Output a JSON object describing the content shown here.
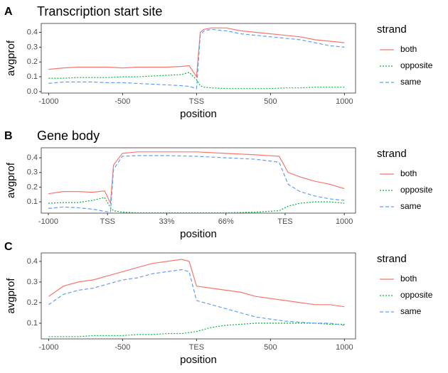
{
  "chart_data": [
    {
      "type": "line",
      "panel": "A",
      "title": "Transcription start site",
      "xlabel": "position",
      "ylabel": "avgprof",
      "legend_title": "strand",
      "legend": "right",
      "xlim": [
        -1050,
        1075
      ],
      "ylim": [
        -0.01,
        0.46
      ],
      "xticks": [
        -1000,
        -500,
        {
          "value": 0,
          "label": "TSS"
        },
        500,
        1000
      ],
      "yticks": [
        {
          "value": 0,
          "label": "0.0"
        },
        0.1,
        0.2,
        0.3,
        0.4
      ],
      "x": [
        -1000,
        -900,
        -800,
        -700,
        -600,
        -500,
        -400,
        -300,
        -200,
        -100,
        -50,
        0,
        25,
        50,
        100,
        200,
        300,
        400,
        500,
        600,
        700,
        800,
        900,
        1000
      ],
      "series": [
        {
          "name": "both",
          "color": "#F8766D",
          "linestyle": "solid",
          "values": [
            0.15,
            0.16,
            0.165,
            0.165,
            0.165,
            0.16,
            0.165,
            0.165,
            0.165,
            0.17,
            0.175,
            0.1,
            0.4,
            0.42,
            0.43,
            0.43,
            0.41,
            0.4,
            0.39,
            0.38,
            0.37,
            0.35,
            0.34,
            0.33
          ]
        },
        {
          "name": "opposite",
          "color": "#00BA38",
          "linestyle": "dotted",
          "values": [
            0.09,
            0.09,
            0.095,
            0.095,
            0.095,
            0.1,
            0.1,
            0.105,
            0.11,
            0.115,
            0.13,
            0.08,
            0.04,
            0.03,
            0.025,
            0.02,
            0.02,
            0.02,
            0.02,
            0.025,
            0.025,
            0.03,
            0.03,
            0.03
          ]
        },
        {
          "name": "same",
          "color": "#619CFF",
          "linestyle": "dashed",
          "values": [
            0.055,
            0.065,
            0.065,
            0.065,
            0.06,
            0.06,
            0.055,
            0.05,
            0.045,
            0.04,
            0.035,
            0.02,
            0.38,
            0.41,
            0.42,
            0.41,
            0.39,
            0.38,
            0.37,
            0.36,
            0.35,
            0.33,
            0.31,
            0.3
          ]
        }
      ]
    },
    {
      "type": "line",
      "panel": "B",
      "title": "Gene body",
      "xlabel": "position",
      "ylabel": "avgprof",
      "legend_title": "strand",
      "legend": "right",
      "xlim": [
        -0.12,
        5.19
      ],
      "ylim": [
        0.023,
        0.468
      ],
      "xticks": [
        {
          "value": 0,
          "label": "-1000"
        },
        {
          "value": 1,
          "label": "TSS"
        },
        {
          "value": 2,
          "label": "33%"
        },
        {
          "value": 3,
          "label": "66%"
        },
        {
          "value": 4,
          "label": "TES"
        },
        {
          "value": 5,
          "label": "1000"
        }
      ],
      "yticks": [
        0.1,
        0.2,
        0.3,
        0.4
      ],
      "x": [
        0,
        0.25,
        0.5,
        0.75,
        0.95,
        1.05,
        1.1,
        1.25,
        1.5,
        2,
        2.5,
        3,
        3.5,
        3.9,
        4.05,
        4.25,
        4.5,
        4.75,
        5
      ],
      "series": [
        {
          "name": "both",
          "color": "#F8766D",
          "linestyle": "solid",
          "values": [
            0.155,
            0.17,
            0.17,
            0.165,
            0.175,
            0.09,
            0.35,
            0.43,
            0.44,
            0.44,
            0.44,
            0.43,
            0.42,
            0.41,
            0.3,
            0.27,
            0.24,
            0.22,
            0.19
          ]
        },
        {
          "name": "opposite",
          "color": "#00BA38",
          "linestyle": "dotted",
          "values": [
            0.09,
            0.095,
            0.095,
            0.11,
            0.13,
            0.06,
            0.04,
            0.03,
            0.025,
            0.025,
            0.025,
            0.025,
            0.03,
            0.04,
            0.07,
            0.09,
            0.1,
            0.1,
            0.09
          ]
        },
        {
          "name": "same",
          "color": "#619CFF",
          "linestyle": "dashed",
          "values": [
            0.055,
            0.065,
            0.06,
            0.05,
            0.035,
            0.03,
            0.32,
            0.41,
            0.415,
            0.415,
            0.41,
            0.4,
            0.39,
            0.37,
            0.22,
            0.17,
            0.14,
            0.12,
            0.11
          ]
        }
      ]
    },
    {
      "type": "line",
      "panel": "C",
      "xlabel": "position",
      "ylabel": "avgprof",
      "legend_title": "strand",
      "legend": "right",
      "xlim": [
        -1050,
        1075
      ],
      "ylim": [
        0.024,
        0.441
      ],
      "xticks": [
        -1000,
        -500,
        {
          "value": 0,
          "label": "TES"
        },
        500,
        1000
      ],
      "yticks": [
        0.1,
        0.2,
        0.3,
        0.4
      ],
      "x": [
        -1000,
        -900,
        -800,
        -700,
        -600,
        -500,
        -400,
        -300,
        -200,
        -100,
        -50,
        0,
        100,
        200,
        300,
        400,
        500,
        600,
        700,
        800,
        900,
        1000
      ],
      "series": [
        {
          "name": "both",
          "color": "#F8766D",
          "linestyle": "solid",
          "values": [
            0.23,
            0.28,
            0.3,
            0.31,
            0.33,
            0.35,
            0.37,
            0.39,
            0.4,
            0.41,
            0.4,
            0.28,
            0.27,
            0.26,
            0.25,
            0.23,
            0.22,
            0.21,
            0.2,
            0.19,
            0.19,
            0.18
          ]
        },
        {
          "name": "opposite",
          "color": "#00BA38",
          "linestyle": "dotted",
          "values": [
            0.035,
            0.035,
            0.035,
            0.04,
            0.04,
            0.04,
            0.045,
            0.045,
            0.05,
            0.05,
            0.055,
            0.06,
            0.08,
            0.09,
            0.095,
            0.1,
            0.1,
            0.1,
            0.1,
            0.1,
            0.095,
            0.095
          ]
        },
        {
          "name": "same",
          "color": "#619CFF",
          "linestyle": "dashed",
          "values": [
            0.19,
            0.24,
            0.26,
            0.27,
            0.29,
            0.31,
            0.32,
            0.34,
            0.35,
            0.36,
            0.35,
            0.21,
            0.19,
            0.17,
            0.15,
            0.13,
            0.12,
            0.11,
            0.105,
            0.1,
            0.1,
            0.09
          ]
        }
      ]
    }
  ]
}
